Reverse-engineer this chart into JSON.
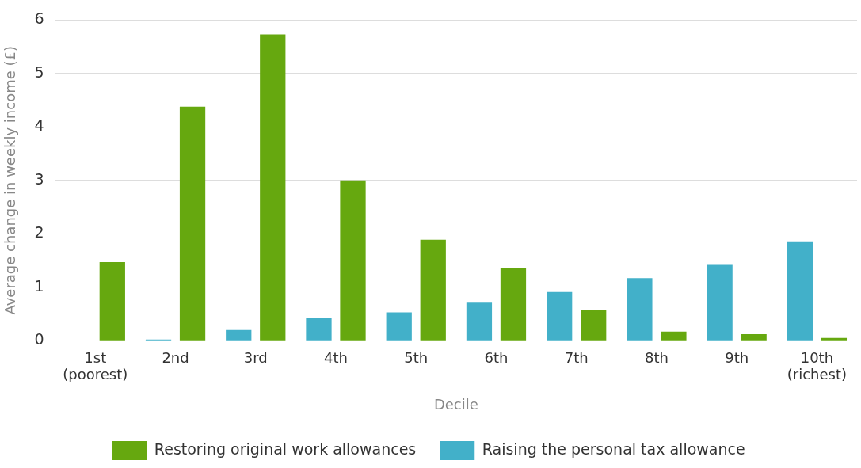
{
  "chart_data": {
    "type": "bar",
    "xlabel": "Decile",
    "ylabel": "Average change in weekly income (£)",
    "categories": [
      "1st\n(poorest)",
      "2nd",
      "3rd",
      "4th",
      "5th",
      "6th",
      "7th",
      "8th",
      "9th",
      "10th\n(richest)"
    ],
    "series": [
      {
        "name": "Raising the personal tax allowance",
        "color": "#42b0c9",
        "values": [
          0,
          0.02,
          0.2,
          0.42,
          0.53,
          0.71,
          0.91,
          1.17,
          1.42,
          1.86
        ]
      },
      {
        "name": "Restoring original work allowances",
        "color": "#66a80f",
        "values": [
          1.47,
          4.38,
          5.73,
          3.0,
          1.89,
          1.36,
          0.58,
          0.17,
          0.12,
          0.05
        ]
      }
    ],
    "ylim": [
      0,
      6
    ],
    "yticks": [
      0,
      1,
      2,
      3,
      4,
      5,
      6
    ],
    "grid": "y",
    "legend": "bottom"
  }
}
